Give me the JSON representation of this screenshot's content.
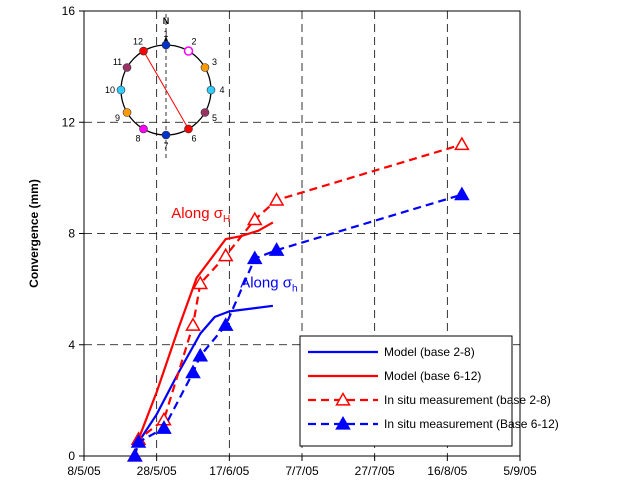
{
  "chart_data": {
    "type": "line",
    "ylabel": "Convergence (mm)",
    "xlabel": "",
    "ylim": [
      0,
      16
    ],
    "y_ticks": [
      "0",
      "4",
      "8",
      "12",
      "16"
    ],
    "x_ticks": [
      "8/5/05",
      "28/5/05",
      "17/6/05",
      "7/7/05",
      "27/7/05",
      "16/8/05",
      "5/9/05"
    ],
    "xlim": [
      "2005-05-08",
      "2005-09-05"
    ],
    "grid": true,
    "legend_position": "bottom-right",
    "series": [
      {
        "name": "Model (base 2-8)",
        "color": "#0000ff",
        "style": "solid",
        "marker": "none",
        "x": [
          "2005-05-23",
          "2005-05-28",
          "2005-06-03",
          "2005-06-09",
          "2005-06-13",
          "2005-06-17",
          "2005-06-23",
          "2005-06-29"
        ],
        "y": [
          0.5,
          1.5,
          3.0,
          4.4,
          5.0,
          5.2,
          5.3,
          5.4
        ]
      },
      {
        "name": "Model (base 6-12)",
        "color": "#ff0000",
        "style": "solid",
        "marker": "none",
        "x": [
          "2005-05-23",
          "2005-05-28",
          "2005-06-03",
          "2005-06-08",
          "2005-06-12",
          "2005-06-16",
          "2005-06-20",
          "2005-06-25",
          "2005-06-29"
        ],
        "y": [
          0.6,
          2.3,
          4.6,
          6.4,
          7.1,
          7.8,
          7.9,
          8.1,
          8.4
        ]
      },
      {
        "name": "In situ measurement (base 2-8)",
        "color": "#ff0000",
        "style": "dashed",
        "marker": "open-triangle",
        "x": [
          "2005-05-22",
          "2005-05-23",
          "2005-05-30",
          "2005-06-07",
          "2005-06-09",
          "2005-06-16",
          "2005-06-24",
          "2005-06-30",
          "2005-08-20"
        ],
        "y": [
          0.0,
          0.6,
          1.3,
          4.7,
          6.2,
          7.2,
          8.5,
          9.2,
          11.2
        ]
      },
      {
        "name": "In situ measurement (Base 6-12)",
        "color": "#0000ff",
        "style": "dashed",
        "marker": "filled-triangle",
        "x": [
          "2005-05-22",
          "2005-05-23",
          "2005-05-30",
          "2005-06-07",
          "2005-06-09",
          "2005-06-16",
          "2005-06-24",
          "2005-06-30",
          "2005-08-20"
        ],
        "y": [
          0.0,
          0.5,
          1.0,
          3.0,
          3.6,
          4.7,
          7.1,
          7.4,
          9.4
        ]
      }
    ],
    "annotations": [
      {
        "id": "along_h_upper",
        "text": "Along σ",
        "sub": "H",
        "color": "#ff0000"
      },
      {
        "id": "along_h_lower",
        "text": "Along σ",
        "sub": "h",
        "color": "#0000ff"
      }
    ],
    "inset": {
      "north_label": "N",
      "points": [
        {
          "n": "1",
          "color": "#0033cc"
        },
        {
          "n": "2",
          "color": "#ff00ff",
          "open": true
        },
        {
          "n": "3",
          "color": "#ff9900"
        },
        {
          "n": "4",
          "color": "#33ccff"
        },
        {
          "n": "5",
          "color": "#993366"
        },
        {
          "n": "6",
          "color": "#ff0000"
        },
        {
          "n": "7",
          "color": "#0033cc"
        },
        {
          "n": "8",
          "color": "#ff00ff"
        },
        {
          "n": "9",
          "color": "#ff9900"
        },
        {
          "n": "10",
          "color": "#33ccff"
        },
        {
          "n": "11",
          "color": "#993366"
        },
        {
          "n": "12",
          "color": "#ff0000"
        }
      ]
    }
  }
}
